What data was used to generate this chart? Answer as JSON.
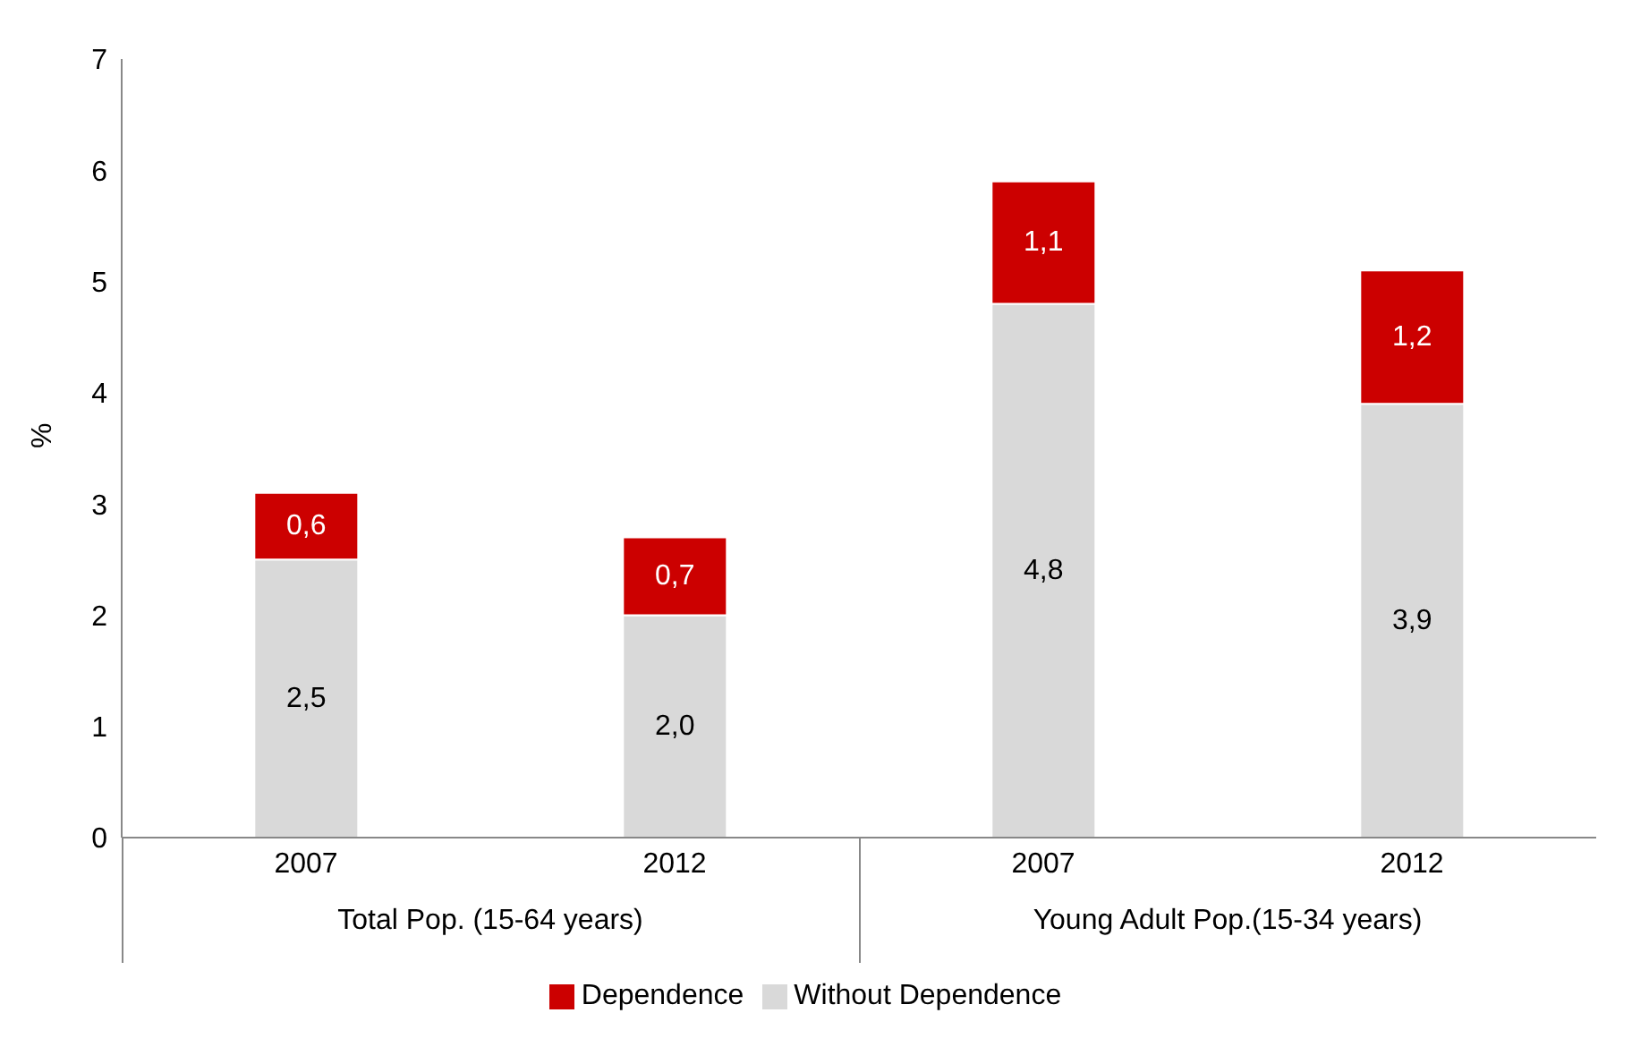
{
  "chart_data": {
    "type": "bar",
    "stacked": true,
    "ylabel": "%",
    "categories": [
      "2007",
      "2012",
      "2007",
      "2012"
    ],
    "annotations": [
      "Total Pop. (15-64 years)",
      "Young Adult Pop.(15-34 years)"
    ],
    "series": [
      {
        "name": "Without Dependence",
        "color": "#d9d9d9",
        "values": [
          2.5,
          2.0,
          4.8,
          3.9
        ],
        "value_labels": [
          "2,5",
          "2,0",
          "4,8",
          "3,9"
        ]
      },
      {
        "name": "Dependence",
        "color": "#cc0000",
        "values": [
          0.6,
          0.7,
          1.1,
          1.2
        ],
        "value_labels": [
          "0,6",
          "0,7",
          "1,1",
          "1,2"
        ]
      }
    ],
    "ylim": [
      0,
      7
    ],
    "yticks": [
      0,
      1,
      2,
      3,
      4,
      5,
      6,
      7
    ],
    "grid": false,
    "legend": "bottom"
  }
}
